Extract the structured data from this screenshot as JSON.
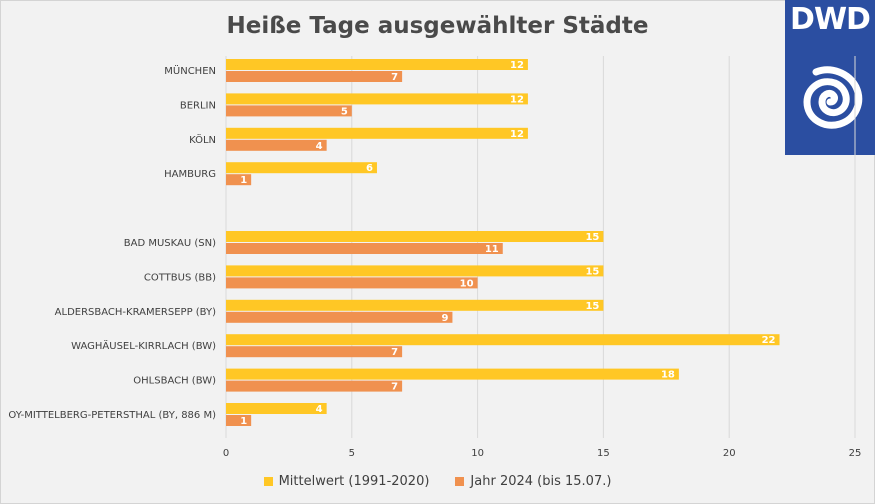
{
  "colors": {
    "mittelwert": "#ffc725",
    "jahr2024": "#f0914f",
    "grid": "#d9d9d9",
    "logo_bg": "#2b4ea1"
  },
  "logo": {
    "text": "DWD",
    "icon": "swirl-icon"
  },
  "chart_data": {
    "type": "bar",
    "orientation": "horizontal",
    "title": "Heiße Tage ausgewählter Städte",
    "categories": [
      "MÜNCHEN",
      "BERLIN",
      "KÖLN",
      "HAMBURG",
      "",
      "BAD MUSKAU (SN)",
      "COTTBUS (BB)",
      "ALDERSBACH-KRAMERSEPP (BY)",
      "WAGHÄUSEL-KIRRLACH (BW)",
      "OHLSBACH (BW)",
      "OY-MITTELBERG-PETERSTHAL (BY, 886 M)"
    ],
    "series": [
      {
        "name": "Mittelwert (1991-2020)",
        "values": [
          12,
          12,
          12,
          6,
          null,
          15,
          15,
          15,
          22,
          18,
          4
        ]
      },
      {
        "name": "Jahr 2024 (bis 15.07.)",
        "values": [
          7,
          5,
          4,
          1,
          null,
          11,
          10,
          9,
          7,
          7,
          1
        ]
      }
    ],
    "xlim": [
      0,
      25
    ],
    "xticks": [
      0,
      5,
      10,
      15,
      20,
      25
    ],
    "grid": true,
    "legend_position": "bottom"
  }
}
